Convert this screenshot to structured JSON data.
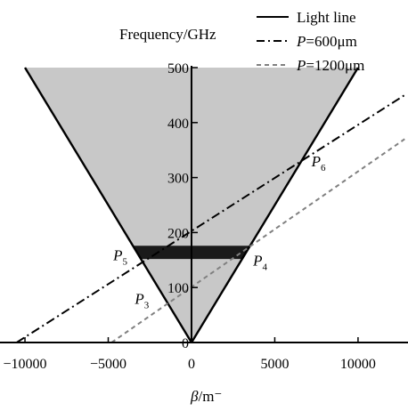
{
  "chart_data": {
    "type": "line",
    "ylabel": "Frequency/GHz",
    "xlabel_italic": "β",
    "xlabel_rest": "/m⁻",
    "xlim": [
      -11500,
      13000
    ],
    "ylim": [
      0,
      500
    ],
    "x_ticks": [
      -10000,
      -5000,
      0,
      5000,
      10000
    ],
    "x_tick_labels": [
      "−10000",
      "−5000",
      "0",
      "5000",
      "10000"
    ],
    "y_ticks": [
      0,
      100,
      200,
      300,
      400,
      500
    ],
    "y_tick_labels": [
      "0",
      "100",
      "200",
      "300",
      "400",
      "500"
    ],
    "light_cone": {
      "left_top": [
        -10000,
        500
      ],
      "apex": [
        0,
        0
      ],
      "right_top": [
        10000,
        500
      ],
      "fill": "#c8c8c8"
    },
    "band": {
      "y_min": 152,
      "y_max": 176,
      "fill": "#1a1a1a"
    },
    "series": [
      {
        "name": "Light line",
        "style": "solid",
        "color": "#000000",
        "points_left": [
          [
            -10000,
            500
          ],
          [
            0,
            0
          ]
        ],
        "points_right": [
          [
            0,
            0
          ],
          [
            10000,
            500
          ]
        ]
      },
      {
        "name": "P=600μm",
        "name_italic": "P",
        "name_rest": "=600μm",
        "style": "dashdot",
        "color": "#000000",
        "points": [
          [
            -10500,
            0
          ],
          [
            12800,
            450
          ]
        ]
      },
      {
        "name": "P=1200μm",
        "name_italic": "P",
        "name_rest": "=1200μm",
        "style": "dashed",
        "color": "#808080",
        "points": [
          [
            -4800,
            0
          ],
          [
            12800,
            370
          ]
        ]
      }
    ],
    "annotations": [
      {
        "letter": "P",
        "sub": "3",
        "x": -3400,
        "y": 70
      },
      {
        "letter": "P",
        "sub": "4",
        "x": 3700,
        "y": 140
      },
      {
        "letter": "P",
        "sub": "5",
        "x": -4700,
        "y": 150
      },
      {
        "letter": "P",
        "sub": "6",
        "x": 7200,
        "y": 320
      }
    ],
    "legend_position": "top-right"
  }
}
